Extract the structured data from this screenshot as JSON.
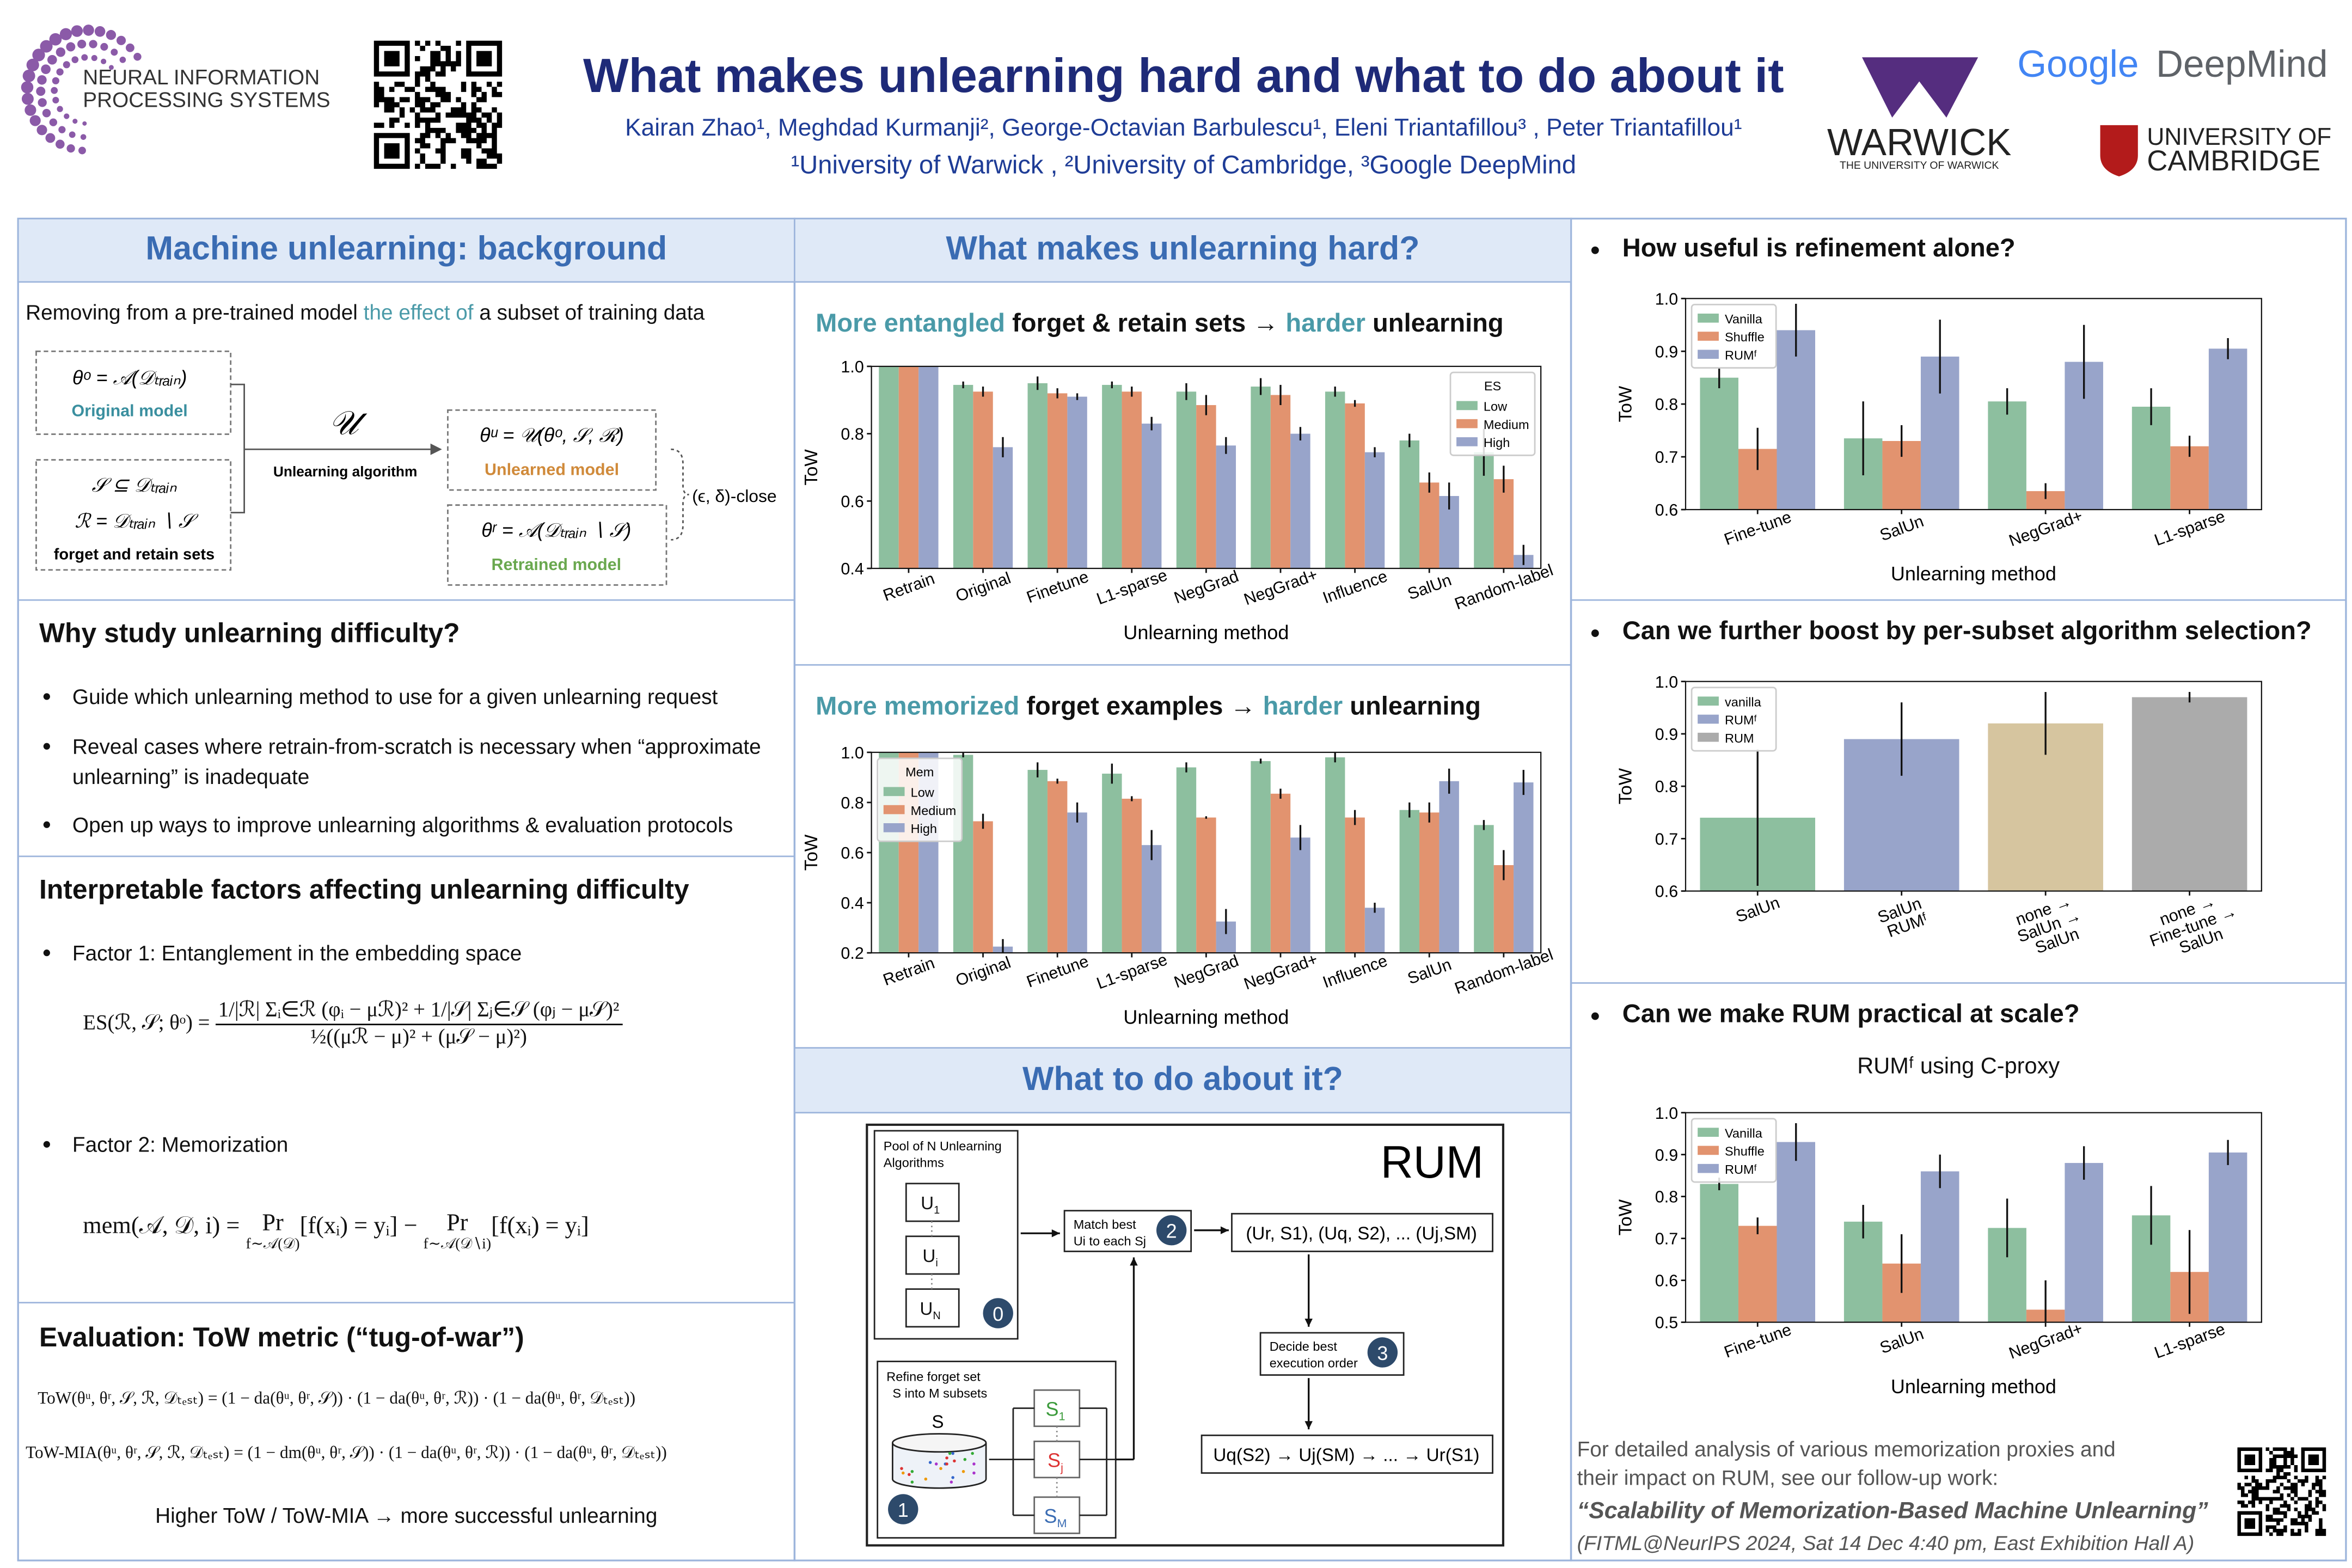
{
  "header": {
    "title": "What makes unlearning hard and what to do about it",
    "authors": "Kairan Zhao¹, Meghdad Kurmanji², George-Octavian Barbulescu¹, Eleni Triantafillou³ , Peter Triantafillou¹",
    "affiliations": "¹University of Warwick , ²University of Cambridge, ³Google DeepMind"
  },
  "logos": {
    "neurips": [
      "NEURAL INFORMATION",
      "PROCESSING SYSTEMS"
    ],
    "warwick": "WARWICK",
    "warwick_sub": "THE UNIVERSITY OF WARWICK",
    "google": "Google",
    "deepmind": "DeepMind",
    "cambridge": [
      "UNIVERSITY OF",
      "CAMBRIDGE"
    ]
  },
  "background": {
    "heading": "Machine unlearning: background",
    "intro": [
      "Removing from a pre-trained model ",
      "the effect of",
      " a subset of training data"
    ],
    "original": {
      "formula": "θᵒ = 𝒜(𝒟ₜᵣₐᵢₙ)",
      "label": "Original model"
    },
    "sets": [
      "𝒮 ⊆ 𝒟ₜᵣₐᵢₙ",
      "ℛ = 𝒟ₜᵣₐᵢₙ ∖ 𝒮",
      "forget and retain sets"
    ],
    "algorithm": {
      "symbol": "𝒰",
      "label": "Unlearning algorithm"
    },
    "unlearned": {
      "formula": "θᵘ = 𝒰(θᵒ, 𝒮, ℛ)",
      "label": "Unlearned model"
    },
    "retrained": {
      "formula": "θʳ = 𝒜(𝒟ₜᵣₐᵢₙ ∖ 𝒮)",
      "label": "Retrained model"
    },
    "close": "(ϵ, δ)-close"
  },
  "why": {
    "heading": "Why study unlearning difficulty?",
    "bullets": [
      "Guide which unlearning method to use for a given unlearning request",
      "Reveal cases where retrain-from-scratch is necessary when “approximate unlearning” is inadequate",
      "Open up ways to improve unlearning algorithms & evaluation protocols"
    ]
  },
  "factors": {
    "heading": "Interpretable factors affecting unlearning difficulty",
    "factor1": "Factor 1: Entanglement in the embedding space",
    "es_formula": {
      "lhs": "ES(ℛ, 𝒮; θᵒ) =",
      "numerator": "1/|ℛ| Σᵢ∈ℛ (φᵢ − μℛ)² + 1/|𝒮| Σⱼ∈𝒮 (φⱼ − μ𝒮)²",
      "denominator": "½((μℛ − μ)² + (μ𝒮 − μ)²)"
    },
    "factor2": "Factor 2: Memorization",
    "mem_formula": {
      "lhs": "mem(𝒜, 𝒟, i) =",
      "terms": [
        {
          "op": "Pr",
          "sub": "f∼𝒜(𝒟)",
          "arg": "[f(xᵢ) = yᵢ]"
        },
        {
          "op": "Pr",
          "sub": "f∼𝒜(𝒟∖i)",
          "arg": "[f(xᵢ) = yᵢ]"
        }
      ],
      "minus": "−"
    }
  },
  "evaluation": {
    "heading": "Evaluation: ToW metric (“tug-of-war”)",
    "tow": "ToW(θᵘ, θʳ, 𝒮, ℛ, 𝒟ₜₑₛₜ) = (1 − da(θᵘ, θʳ, 𝒮)) · (1 − da(θᵘ, θʳ, ℛ)) · (1 − da(θᵘ, θʳ, 𝒟ₜₑₛₜ))",
    "tow_mia": "ToW-MIA(θᵘ, θʳ, 𝒮, ℛ, 𝒟ₜₑₛₜ) = (1 − dm(θᵘ, θʳ, 𝒮)) · (1 − da(θᵘ, θʳ, ℛ)) · (1 − da(θᵘ, θʳ, 𝒟ₜₑₛₜ))",
    "conclusion": "Higher ToW / ToW-MIA → more successful unlearning"
  },
  "hard": {
    "heading": "What makes unlearning hard?",
    "entangled_title": [
      "More entangled",
      " forget & retain sets → ",
      "harder",
      " unlearning"
    ],
    "memorized_title": [
      "More memorized",
      " forget examples → ",
      "harder",
      " unlearning"
    ]
  },
  "rum": {
    "heading": "What to do about it?",
    "name": "RUM",
    "pool_title": [
      "Pool of N Unlearning",
      "Algorithms"
    ],
    "algorithms": [
      {
        "base": "U",
        "sub": "1"
      },
      {
        "base": "U",
        "sub": "i"
      },
      {
        "base": "U",
        "sub": "N"
      }
    ],
    "steps": [
      "0",
      "1",
      "2",
      "3"
    ],
    "match": [
      "Match best",
      "Ui to each Sj"
    ],
    "pairs": "(Ur, S1), (Uq, S2), ... (Uj,SM)",
    "order": [
      "Decide best",
      "execution order"
    ],
    "sequence": "Uq(S2) → Uj(SM) → ... → Ur(S1)",
    "refine": [
      "Refine forget set",
      "S into M subsets"
    ],
    "set": "S",
    "subsets": [
      {
        "base": "S",
        "sub": "1"
      },
      {
        "base": "S",
        "sub": "j"
      },
      {
        "base": "S",
        "sub": "M"
      }
    ]
  },
  "right": {
    "q1": "How useful is refinement alone?",
    "q2": "Can we further boost by per-subset algorithm selection?",
    "q3": "Can we make RUM practical at scale?",
    "q3_subtitle": "RUMᶠ using C-proxy",
    "footer": [
      "For detailed analysis of various memorization proxies and",
      "their impact on RUM, see our follow-up work:",
      "“Scalability of Memorization-Based Machine Unlearning”",
      "(FITML@NeurIPS 2024, Sat 14 Dec 4:40 pm, East Exhibition Hall A)"
    ]
  },
  "chart_data": [
    {
      "type": "bar",
      "categories": [
        "Retrain",
        "Original",
        "Finetune",
        "L1-sparse",
        "NegGrad",
        "NegGrad+",
        "Influence",
        "SalUn",
        "Random-label"
      ],
      "series": [
        {
          "name": "Low",
          "color": "#8dbf9f",
          "values": [
            1.0,
            0.945,
            0.95,
            0.945,
            0.925,
            0.94,
            0.925,
            0.78,
            0.745
          ],
          "errors": [
            0,
            0.01,
            0.02,
            0.01,
            0.025,
            0.025,
            0.015,
            0.02,
            0.07
          ]
        },
        {
          "name": "Medium",
          "color": "#e2936f",
          "values": [
            1.0,
            0.925,
            0.92,
            0.925,
            0.885,
            0.915,
            0.89,
            0.655,
            0.665
          ],
          "errors": [
            0,
            0.015,
            0.015,
            0.015,
            0.03,
            0.03,
            0.01,
            0.03,
            0.04
          ]
        },
        {
          "name": "High",
          "color": "#98a4ca",
          "values": [
            1.0,
            0.76,
            0.91,
            0.83,
            0.765,
            0.8,
            0.745,
            0.615,
            0.44
          ],
          "errors": [
            0,
            0.03,
            0.01,
            0.02,
            0.025,
            0.02,
            0.015,
            0.04,
            0.03
          ]
        }
      ],
      "legend_title": "ES",
      "legend": "upper right",
      "xlabel": "Unlearning method",
      "ylabel": "ToW",
      "ylim": [
        0.4,
        1.0
      ],
      "yticks": [
        0.4,
        0.6,
        0.8,
        {
          "value": 1,
          "label": "1.0"
        }
      ]
    },
    {
      "type": "bar",
      "categories": [
        "Retrain",
        "Original",
        "Finetune",
        "L1-sparse",
        "NegGrad",
        "NegGrad+",
        "Influence",
        "SalUn",
        "Random-label"
      ],
      "series": [
        {
          "name": "Low",
          "color": "#8dbf9f",
          "values": [
            1.0,
            0.99,
            0.93,
            0.915,
            0.94,
            0.965,
            0.98,
            0.77,
            0.71
          ],
          "errors": [
            0,
            0.01,
            0.03,
            0.04,
            0.02,
            0.01,
            0.02,
            0.03,
            0.02
          ]
        },
        {
          "name": "Medium",
          "color": "#e2936f",
          "values": [
            1.0,
            0.725,
            0.885,
            0.815,
            0.74,
            0.835,
            0.74,
            0.76,
            0.55
          ],
          "errors": [
            0,
            0.03,
            0.01,
            0.01,
            0.005,
            0.02,
            0.03,
            0.04,
            0.06
          ]
        },
        {
          "name": "High",
          "color": "#98a4ca",
          "values": [
            1.0,
            0.225,
            0.76,
            0.63,
            0.325,
            0.66,
            0.38,
            0.885,
            0.88
          ],
          "errors": [
            0,
            0.03,
            0.04,
            0.06,
            0.05,
            0.05,
            0.02,
            0.05,
            0.05
          ]
        }
      ],
      "legend_title": "Mem",
      "legend": "upper left",
      "xlabel": "Unlearning method",
      "ylabel": "ToW",
      "ylim": [
        0.2,
        1.0
      ],
      "yticks": [
        0.2,
        0.4,
        0.6,
        0.8,
        {
          "value": 1,
          "label": "1.0"
        }
      ]
    },
    {
      "type": "bar",
      "categories": [
        "Fine-tune",
        "SalUn",
        "NegGrad+",
        "L1-sparse"
      ],
      "series": [
        {
          "name": "Vanilla",
          "color": "#8dbf9f",
          "values": [
            0.85,
            0.735,
            0.805,
            0.795
          ],
          "errors": [
            0.02,
            0.07,
            0.025,
            0.035
          ]
        },
        {
          "name": "Shuffle",
          "color": "#e2936f",
          "values": [
            0.715,
            0.73,
            0.635,
            0.72
          ],
          "errors": [
            0.04,
            0.03,
            0.015,
            0.02
          ]
        },
        {
          "name": "RUMᶠ",
          "color": "#98a4ca",
          "values": [
            0.94,
            0.89,
            0.88,
            0.905
          ],
          "errors": [
            0.05,
            0.07,
            0.07,
            0.02
          ]
        }
      ],
      "legend": "upper left",
      "xlabel": "Unlearning method",
      "ylabel": "ToW",
      "ylim": [
        0.6,
        1.0
      ],
      "yticks": [
        0.6,
        0.7,
        0.8,
        0.9,
        {
          "value": 1,
          "label": "1.0"
        }
      ]
    },
    {
      "type": "bar",
      "categories": [
        "SalUn",
        "SalUn RUMᶠ",
        "none → SalUn → SalUn",
        "none → Fine-tune → SalUn"
      ],
      "values": [
        0.74,
        0.89,
        0.92,
        0.97
      ],
      "errors": [
        0.13,
        0.07,
        0.06,
        0.01
      ],
      "colors": [
        "#8dbf9f",
        "#98a4ca",
        "#d6c59f",
        "#ababab"
      ],
      "legend_entries": [
        {
          "name": "vanilla",
          "color": "#8dbf9f"
        },
        {
          "name": "RUMᶠ",
          "color": "#98a4ca"
        },
        {
          "name": "RUM",
          "color": "#ababab"
        }
      ],
      "legend": "upper left",
      "ylabel": "ToW",
      "ylim": [
        0.6,
        1.0
      ],
      "yticks": [
        0.6,
        0.7,
        0.8,
        0.9,
        {
          "value": 1,
          "label": "1.0"
        }
      ]
    },
    {
      "type": "bar",
      "categories": [
        "Fine-tune",
        "SalUn",
        "NegGrad+",
        "L1-sparse"
      ],
      "series": [
        {
          "name": "Vanilla",
          "color": "#8dbf9f",
          "values": [
            0.83,
            0.74,
            0.725,
            0.755
          ],
          "errors": [
            0.015,
            0.04,
            0.07,
            0.07
          ]
        },
        {
          "name": "Shuffle",
          "color": "#e2936f",
          "values": [
            0.73,
            0.64,
            0.53,
            0.62
          ],
          "errors": [
            0.02,
            0.07,
            0.07,
            0.1
          ]
        },
        {
          "name": "RUMᶠ",
          "color": "#98a4ca",
          "values": [
            0.93,
            0.86,
            0.88,
            0.905
          ],
          "errors": [
            0.045,
            0.04,
            0.04,
            0.03
          ]
        }
      ],
      "legend": "upper left",
      "xlabel": "Unlearning method",
      "ylabel": "ToW",
      "ylim": [
        0.5,
        1.0
      ],
      "yticks": [
        0.5,
        0.6,
        0.7,
        0.8,
        0.9,
        {
          "value": 1,
          "label": "1.0"
        }
      ]
    }
  ]
}
